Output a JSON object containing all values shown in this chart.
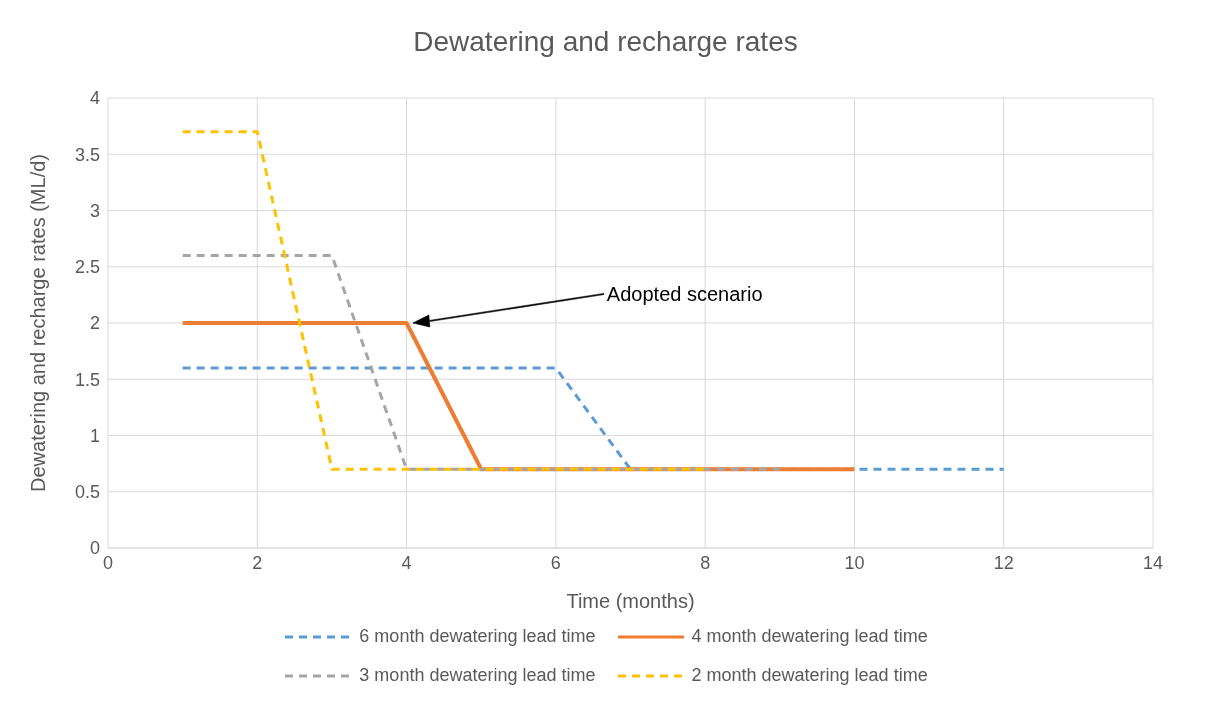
{
  "chart_data": {
    "type": "line",
    "title": "Dewatering and recharge rates",
    "xlabel": "Time (months)",
    "ylabel": "Dewatering and recharge rates (ML/d)",
    "xlim": [
      0,
      14
    ],
    "xticks": [
      0,
      2,
      4,
      6,
      8,
      10,
      12,
      14
    ],
    "ylim": [
      0,
      4
    ],
    "yticks": [
      0,
      0.5,
      1,
      1.5,
      2,
      2.5,
      3,
      3.5,
      4
    ],
    "grid": true,
    "legend": "bottom",
    "marker": "none",
    "series": [
      {
        "name": "6 month dewatering lead time",
        "color": "#5b9bd5",
        "line_style": "dashed",
        "x": [
          1,
          2,
          3,
          4,
          5,
          6,
          7,
          8,
          9,
          10,
          11,
          12
        ],
        "values": [
          1.6,
          1.6,
          1.6,
          1.6,
          1.6,
          1.6,
          0.7,
          0.7,
          0.7,
          0.7,
          0.7,
          0.7
        ]
      },
      {
        "name": "4 month dewatering lead time",
        "color": "#ed7d31",
        "line_style": "solid",
        "x": [
          1,
          2,
          3,
          4,
          5,
          6,
          7,
          8,
          9,
          10
        ],
        "values": [
          2,
          2,
          2,
          2,
          0.7,
          0.7,
          0.7,
          0.7,
          0.7,
          0.7
        ]
      },
      {
        "name": "3 month dewatering lead time",
        "color": "#a5a5a5",
        "line_style": "dashed",
        "x": [
          1,
          2,
          3,
          4,
          5,
          6,
          7,
          8,
          9
        ],
        "values": [
          2.6,
          2.6,
          2.6,
          0.7,
          0.7,
          0.7,
          0.7,
          0.7,
          0.7
        ]
      },
      {
        "name": "2 month dewatering lead time",
        "color": "#ffc000",
        "line_style": "dashed",
        "x": [
          1,
          2,
          3,
          4,
          5,
          6,
          7,
          8
        ],
        "values": [
          3.7,
          3.7,
          0.7,
          0.7,
          0.7,
          0.7,
          0.7,
          0.7
        ]
      }
    ],
    "annotations": [
      "Adopted scenario"
    ]
  }
}
